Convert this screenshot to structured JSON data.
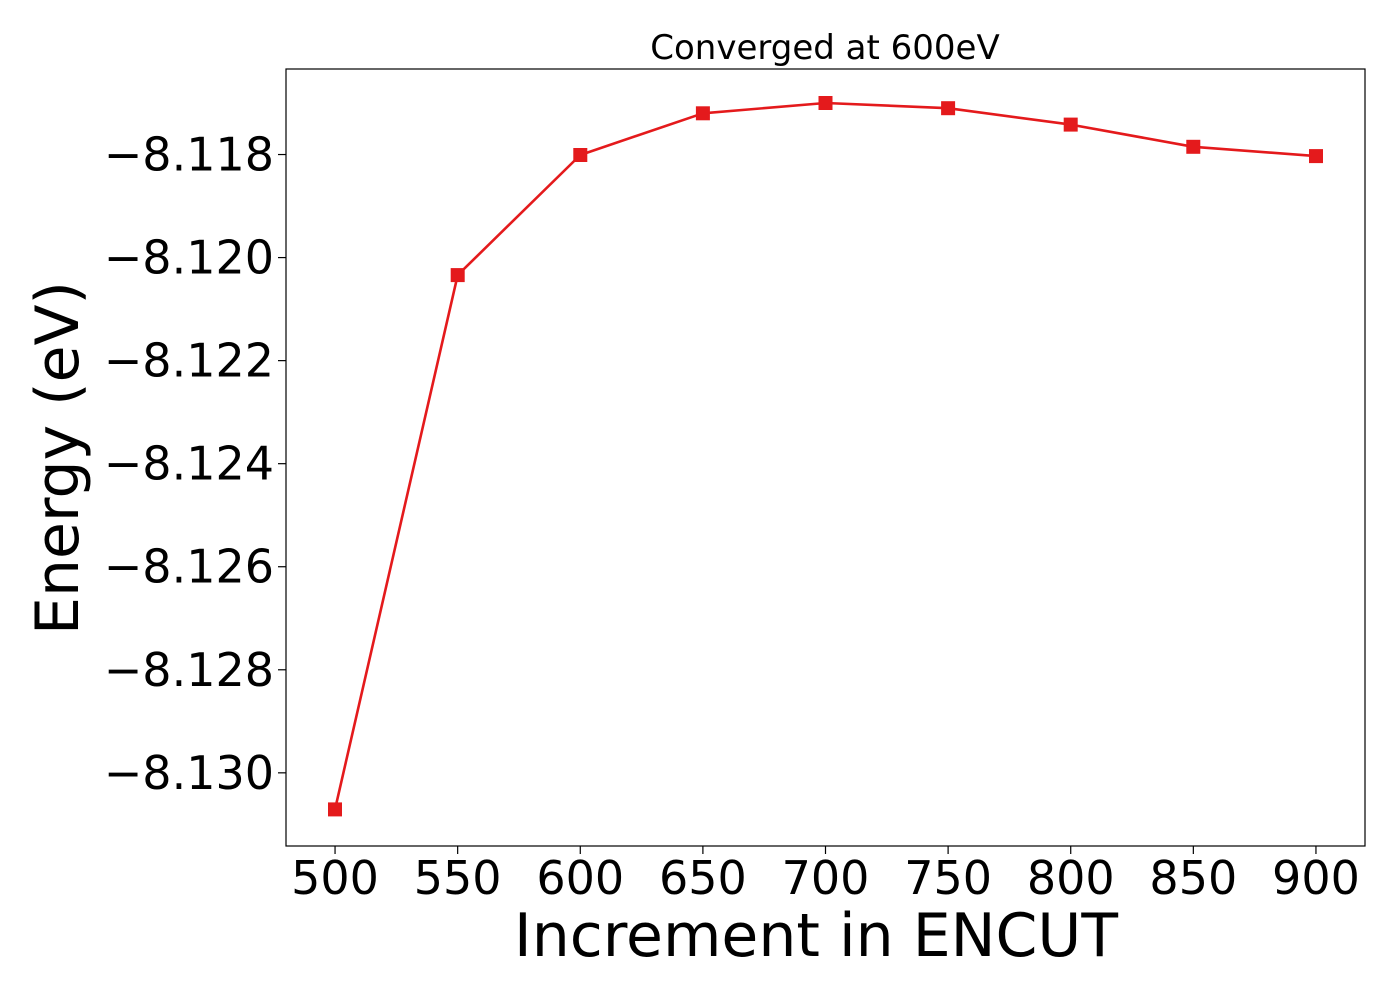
{
  "chart_data": {
    "type": "line",
    "title": "Converged at 600eV",
    "xlabel": "Increment in ENCUT",
    "ylabel": "Energy (eV)",
    "x": [
      500,
      550,
      600,
      650,
      700,
      750,
      800,
      850,
      900
    ],
    "series": [
      {
        "values": [
          -8.13071,
          -8.12034,
          -8.11801,
          -8.1172,
          -8.117,
          -8.1171,
          -8.11742,
          -8.11785,
          -8.11803
        ],
        "color": "#e41a1c",
        "marker": "square"
      }
    ],
    "xlim": [
      480,
      920
    ],
    "ylim": [
      -8.13142,
      -8.11634
    ],
    "xticks": [
      500,
      550,
      600,
      650,
      700,
      750,
      800,
      850,
      900
    ],
    "xtick_labels": [
      "500",
      "550",
      "600",
      "650",
      "700",
      "750",
      "800",
      "850",
      "900"
    ],
    "yticks": [
      -8.13,
      -8.128,
      -8.126,
      -8.124,
      -8.122,
      -8.12,
      -8.118
    ],
    "ytick_labels": [
      "−8.130",
      "−8.128",
      "−8.126",
      "−8.124",
      "−8.122",
      "−8.120",
      "−8.118"
    ],
    "grid": false,
    "legend": "none"
  }
}
